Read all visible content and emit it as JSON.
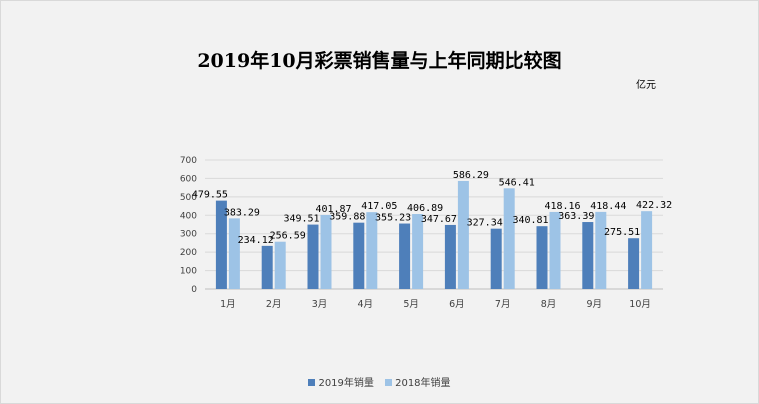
{
  "chart_data": {
    "type": "bar",
    "title": "2019年10月彩票销售量与上年同期比较图",
    "unit": "亿元",
    "categories": [
      "1月",
      "2月",
      "3月",
      "4月",
      "5月",
      "6月",
      "7月",
      "8月",
      "9月",
      "10月"
    ],
    "series": [
      {
        "name": "2019年销量",
        "color": "#4e7fba",
        "values": [
          479.55,
          234.12,
          349.51,
          359.88,
          355.23,
          347.67,
          327.34,
          340.81,
          363.39,
          275.51
        ]
      },
      {
        "name": "2018年销量",
        "color": "#9dc3e6",
        "values": [
          383.29,
          256.59,
          401.87,
          417.05,
          406.89,
          586.29,
          546.41,
          418.16,
          418.44,
          422.32
        ]
      }
    ],
    "data_labels": [
      [
        "479.55",
        "234.12",
        "349.51",
        "359.88",
        "355.23",
        "347.67",
        "327.34",
        "340.81",
        "363.39",
        "275.51"
      ],
      [
        "383.29",
        "256.59",
        "401.87",
        "417.05",
        "406.89",
        "586.29",
        "546.41",
        "418.16",
        "418.44",
        "422.32"
      ]
    ],
    "yticks": [
      0,
      100,
      200,
      300,
      400,
      500,
      600,
      700
    ],
    "ylim": [
      0,
      700
    ],
    "grid": true,
    "legend_position": "bottom"
  }
}
